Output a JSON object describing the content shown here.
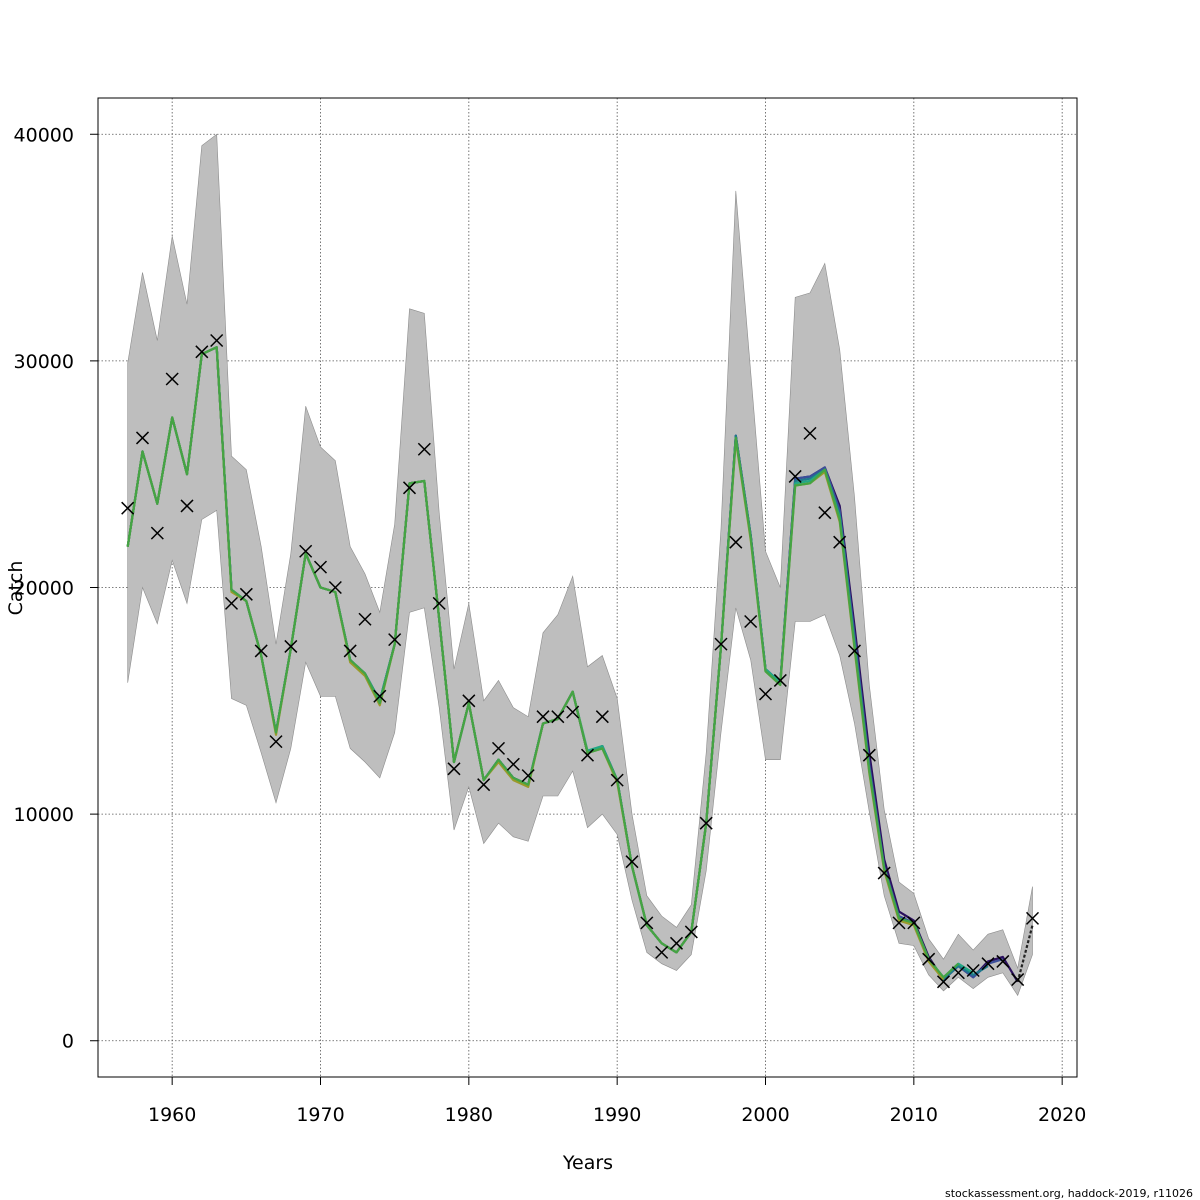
{
  "chart_data": {
    "type": "line",
    "xlabel": "Years",
    "ylabel": "Catch",
    "xlim": [
      1955,
      2021
    ],
    "ylim": [
      -1600,
      41600
    ],
    "x_ticks": [
      1960,
      1970,
      1980,
      1990,
      2000,
      2010,
      2020
    ],
    "x_tick_labels": [
      "1960",
      "1970",
      "1980",
      "1990",
      "2000",
      "2010",
      "2020"
    ],
    "y_ticks": [
      0,
      10000,
      20000,
      30000,
      40000
    ],
    "y_tick_labels": [
      "0",
      "10000",
      "20000",
      "30000",
      "40000"
    ],
    "grid": true,
    "colors": {
      "band": "#bebebe",
      "band_edge": "#8c8c8c",
      "observation": "#000000",
      "series": [
        "#2b0f5e",
        "#3b4f9a",
        "#1f7a8c",
        "#22a884",
        "#44a444",
        "#9a9a2a"
      ]
    },
    "confidence_band": {
      "x": [
        1957,
        1958,
        1959,
        1960,
        1961,
        1962,
        1963,
        1964,
        1965,
        1966,
        1967,
        1968,
        1969,
        1970,
        1971,
        1972,
        1973,
        1974,
        1975,
        1976,
        1977,
        1978,
        1979,
        1980,
        1981,
        1982,
        1983,
        1984,
        1985,
        1986,
        1987,
        1988,
        1989,
        1990,
        1991,
        1992,
        1993,
        1994,
        1995,
        1996,
        1997,
        1998,
        1999,
        2000,
        2001,
        2002,
        2003,
        2004,
        2005,
        2006,
        2007,
        2008,
        2009,
        2010,
        2011,
        2012,
        2013,
        2014,
        2015,
        2016,
        2017,
        2018
      ],
      "lower": [
        15800,
        20000,
        18400,
        21200,
        19300,
        23000,
        23400,
        15100,
        14800,
        12700,
        10500,
        12900,
        16700,
        15200,
        15200,
        12900,
        12300,
        11600,
        13600,
        18900,
        19100,
        14700,
        9300,
        11200,
        8700,
        9600,
        9000,
        8800,
        10800,
        10800,
        11900,
        9400,
        10000,
        9100,
        6200,
        3900,
        3400,
        3100,
        3800,
        7500,
        13600,
        19100,
        16800,
        12400,
        12400,
        18500,
        18500,
        18800,
        17000,
        14000,
        10100,
        6400,
        4300,
        4200,
        2900,
        2200,
        2800,
        2300,
        2800,
        3000,
        2000,
        3800
      ],
      "upper": [
        29900,
        33900,
        30900,
        35500,
        32500,
        39500,
        40000,
        25800,
        25200,
        21800,
        17500,
        21500,
        28000,
        26200,
        25600,
        21800,
        20600,
        18900,
        22800,
        32300,
        32100,
        23300,
        16400,
        19300,
        15000,
        15900,
        14700,
        14300,
        18000,
        18800,
        20500,
        16500,
        17000,
        15100,
        10000,
        6400,
        5500,
        5000,
        6000,
        12700,
        22600,
        37500,
        29500,
        21600,
        20000,
        32800,
        33000,
        34300,
        30500,
        24000,
        15700,
        10200,
        7000,
        6500,
        4500,
        3600,
        4700,
        4000,
        4700,
        4900,
        3200,
        6800
      ]
    },
    "series": [
      {
        "x": [
          1957,
          1958,
          1959,
          1960,
          1961,
          1962,
          1963,
          1964,
          1965,
          1966,
          1967,
          1968,
          1969,
          1970,
          1971,
          1972,
          1973,
          1974,
          1975,
          1976,
          1977,
          1978,
          1979,
          1980,
          1981,
          1982,
          1983,
          1984,
          1985,
          1986,
          1987,
          1988,
          1989,
          1990,
          1991,
          1992,
          1993,
          1994,
          1995,
          1996,
          1997,
          1998,
          1999,
          2000,
          2001,
          2002,
          2003,
          2004,
          2005,
          2006,
          2007,
          2008,
          2009,
          2010,
          2011,
          2012,
          2013,
          2014,
          2015,
          2016,
          2017
        ],
        "values": [
          21800,
          26000,
          23700,
          27500,
          25000,
          30300,
          30600,
          19900,
          19400,
          17000,
          13600,
          17300,
          21500,
          20000,
          19800,
          16800,
          16200,
          15000,
          17500,
          24600,
          24700,
          18600,
          12300,
          14900,
          11500,
          12400,
          11600,
          11300,
          14000,
          14200,
          15400,
          12700,
          13000,
          11500,
          7700,
          5100,
          4300,
          3900,
          4800,
          9600,
          17400,
          26700,
          22300,
          16400,
          15800,
          24800,
          24900,
          25300,
          23600,
          18300,
          12700,
          8000,
          5700,
          5300,
          3700,
          2700,
          3300,
          2800,
          3500,
          3700,
          2600
        ]
      },
      {
        "x": [
          1957,
          1958,
          1959,
          1960,
          1961,
          1962,
          1963,
          1964,
          1965,
          1966,
          1967,
          1968,
          1969,
          1970,
          1971,
          1972,
          1973,
          1974,
          1975,
          1976,
          1977,
          1978,
          1979,
          1980,
          1981,
          1982,
          1983,
          1984,
          1985,
          1986,
          1987,
          1988,
          1989,
          1990,
          1991,
          1992,
          1993,
          1994,
          1995,
          1996,
          1997,
          1998,
          1999,
          2000,
          2001,
          2002,
          2003,
          2004,
          2005,
          2006,
          2007,
          2008,
          2009,
          2010,
          2011,
          2012,
          2013,
          2014,
          2015,
          2016
        ],
        "values": [
          21800,
          26000,
          23700,
          27500,
          25000,
          30300,
          30600,
          19900,
          19400,
          17000,
          13600,
          17300,
          21500,
          20000,
          19800,
          16800,
          16200,
          15000,
          17500,
          24600,
          24700,
          18600,
          12300,
          14900,
          11500,
          12400,
          11600,
          11300,
          14000,
          14200,
          15400,
          12700,
          13000,
          11500,
          7700,
          5100,
          4300,
          3900,
          4800,
          9600,
          17400,
          26700,
          22300,
          16400,
          15800,
          24800,
          24900,
          25300,
          23400,
          17900,
          12200,
          7700,
          5500,
          5200,
          3600,
          2700,
          3300,
          2800,
          3400,
          3600
        ]
      },
      {
        "x": [
          1957,
          1958,
          1959,
          1960,
          1961,
          1962,
          1963,
          1964,
          1965,
          1966,
          1967,
          1968,
          1969,
          1970,
          1971,
          1972,
          1973,
          1974,
          1975,
          1976,
          1977,
          1978,
          1979,
          1980,
          1981,
          1982,
          1983,
          1984,
          1985,
          1986,
          1987,
          1988,
          1989,
          1990,
          1991,
          1992,
          1993,
          1994,
          1995,
          1996,
          1997,
          1998,
          1999,
          2000,
          2001,
          2002,
          2003,
          2004,
          2005,
          2006,
          2007,
          2008,
          2009,
          2010,
          2011,
          2012,
          2013,
          2014,
          2015
        ],
        "values": [
          21800,
          26000,
          23700,
          27500,
          25000,
          30300,
          30600,
          19900,
          19400,
          17000,
          13600,
          17300,
          21500,
          20000,
          19800,
          16800,
          16200,
          15000,
          17500,
          24600,
          24700,
          18600,
          12300,
          14900,
          11500,
          12400,
          11600,
          11300,
          14000,
          14200,
          15400,
          12700,
          13000,
          11500,
          7700,
          5100,
          4300,
          3900,
          4800,
          9600,
          17400,
          26700,
          22300,
          16400,
          15800,
          24700,
          24800,
          25200,
          23200,
          17600,
          12000,
          7600,
          5400,
          5200,
          3600,
          2700,
          3300,
          2900,
          3300
        ]
      },
      {
        "x": [
          1957,
          1958,
          1959,
          1960,
          1961,
          1962,
          1963,
          1964,
          1965,
          1966,
          1967,
          1968,
          1969,
          1970,
          1971,
          1972,
          1973,
          1974,
          1975,
          1976,
          1977,
          1978,
          1979,
          1980,
          1981,
          1982,
          1983,
          1984,
          1985,
          1986,
          1987,
          1988,
          1989,
          1990,
          1991,
          1992,
          1993,
          1994,
          1995,
          1996,
          1997,
          1998,
          1999,
          2000,
          2001,
          2002,
          2003,
          2004,
          2005,
          2006,
          2007,
          2008,
          2009,
          2010,
          2011,
          2012,
          2013,
          2014
        ],
        "values": [
          21800,
          26000,
          23700,
          27500,
          25000,
          30300,
          30600,
          19900,
          19400,
          17000,
          13600,
          17300,
          21500,
          20000,
          19800,
          16800,
          16200,
          15000,
          17500,
          24600,
          24700,
          18600,
          12300,
          14900,
          11500,
          12400,
          11600,
          11300,
          14000,
          14200,
          15400,
          12800,
          13000,
          11500,
          7700,
          5100,
          4300,
          3900,
          4800,
          9600,
          17400,
          26600,
          22200,
          16400,
          15800,
          24600,
          24700,
          25200,
          23100,
          17500,
          11900,
          7600,
          5400,
          5200,
          3600,
          2800,
          3400,
          3000
        ]
      },
      {
        "x": [
          1957,
          1958,
          1959,
          1960,
          1961,
          1962,
          1963,
          1964,
          1965,
          1966,
          1967,
          1968,
          1969,
          1970,
          1971,
          1972,
          1973,
          1974,
          1975,
          1976,
          1977,
          1978,
          1979,
          1980,
          1981,
          1982,
          1983,
          1984,
          1985,
          1986,
          1987,
          1988,
          1989,
          1990,
          1991,
          1992,
          1993,
          1994,
          1995,
          1996,
          1997,
          1998,
          1999,
          2000,
          2001,
          2002,
          2003,
          2004,
          2005,
          2006,
          2007,
          2008,
          2009,
          2010,
          2011,
          2012,
          2013
        ],
        "values": [
          21800,
          26000,
          23700,
          27500,
          25000,
          30300,
          30600,
          19900,
          19400,
          17000,
          13600,
          17300,
          21500,
          20000,
          19800,
          16800,
          16200,
          14900,
          17500,
          24600,
          24700,
          18600,
          12300,
          14900,
          11500,
          12400,
          11600,
          11300,
          14000,
          14200,
          15400,
          12700,
          12900,
          11500,
          7700,
          5100,
          4300,
          3900,
          4800,
          9600,
          17400,
          26600,
          22200,
          16300,
          15700,
          24500,
          24600,
          25200,
          23000,
          17400,
          11900,
          7600,
          5400,
          5200,
          3600,
          2800,
          3400
        ]
      },
      {
        "x": [
          1957,
          1958,
          1959,
          1960,
          1961,
          1962,
          1963,
          1964,
          1965,
          1966,
          1967,
          1968,
          1969,
          1970,
          1971,
          1972,
          1973,
          1974,
          1975,
          1976,
          1977,
          1978,
          1979,
          1980,
          1981,
          1982,
          1983,
          1984,
          1985,
          1986,
          1987,
          1988,
          1989,
          1990,
          1991,
          1992,
          1993,
          1994,
          1995,
          1996,
          1997,
          1998,
          1999,
          2000,
          2001,
          2002,
          2003,
          2004,
          2005,
          2006,
          2007,
          2008,
          2009,
          2010,
          2011,
          2012
        ],
        "values": [
          21800,
          26000,
          23700,
          27500,
          25000,
          30300,
          30600,
          19800,
          19400,
          17000,
          13500,
          17300,
          21500,
          20000,
          19800,
          16700,
          16100,
          14800,
          17500,
          24600,
          24700,
          18600,
          12300,
          14900,
          11500,
          12300,
          11500,
          11200,
          14000,
          14200,
          15400,
          12700,
          12900,
          11400,
          7700,
          5100,
          4300,
          3900,
          4800,
          9600,
          17400,
          26500,
          22100,
          16300,
          15700,
          24500,
          24600,
          25100,
          22900,
          17300,
          11800,
          7500,
          5300,
          5100,
          3500,
          2700
        ]
      }
    ],
    "forecast": {
      "x": [
        2017,
        2018
      ],
      "values": [
        2600,
        5100
      ]
    },
    "observations": {
      "x": [
        1957,
        1958,
        1959,
        1960,
        1961,
        1962,
        1963,
        1964,
        1965,
        1966,
        1967,
        1968,
        1969,
        1970,
        1971,
        1972,
        1973,
        1974,
        1975,
        1976,
        1977,
        1978,
        1979,
        1980,
        1981,
        1982,
        1983,
        1984,
        1985,
        1986,
        1987,
        1988,
        1989,
        1990,
        1991,
        1992,
        1993,
        1994,
        1995,
        1996,
        1997,
        1998,
        1999,
        2000,
        2001,
        2002,
        2003,
        2004,
        2005,
        2006,
        2007,
        2008,
        2009,
        2010,
        2011,
        2012,
        2013,
        2014,
        2015,
        2016,
        2017,
        2018
      ],
      "values": [
        23500,
        26600,
        22400,
        29200,
        23600,
        30400,
        30900,
        19300,
        19700,
        17200,
        13200,
        17400,
        21600,
        20900,
        20000,
        17200,
        18600,
        15200,
        17700,
        24400,
        26100,
        19300,
        12000,
        15000,
        11300,
        12900,
        12200,
        11700,
        14300,
        14300,
        14500,
        12600,
        14300,
        11500,
        7900,
        5200,
        3900,
        4300,
        4800,
        9600,
        17500,
        22000,
        18500,
        15300,
        15900,
        24900,
        26800,
        23300,
        22000,
        17200,
        12600,
        7400,
        5200,
        5200,
        3600,
        2600,
        3000,
        3100,
        3400,
        3500,
        2700,
        5400
      ]
    }
  },
  "footer": "stockassessment.org, haddock-2019, r11026"
}
